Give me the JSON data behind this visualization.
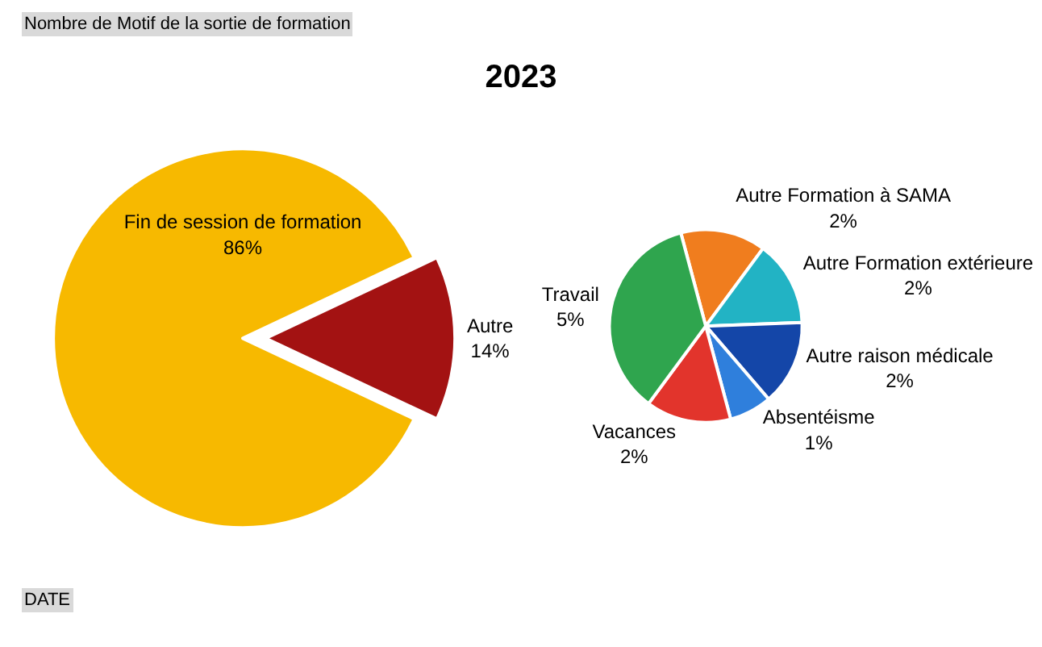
{
  "chart_data": [
    {
      "type": "pie",
      "title": "2023",
      "categories": [
        "Fin de session de formation",
        "Autre"
      ],
      "values": [
        86,
        14
      ],
      "value_labels": [
        "86%",
        "14%"
      ],
      "colors": [
        "#f7b900",
        "#a31212"
      ],
      "annotations": [
        "Nombre de Motif de la sortie de formation",
        "DATE"
      ]
    },
    {
      "type": "pie",
      "categories": [
        "Autre Formation à SAMA",
        "Autre Formation extérieure",
        "Autre raison médicale",
        "Absentéisme",
        "Vacances",
        "Travail"
      ],
      "values": [
        2,
        2,
        2,
        1,
        2,
        5
      ],
      "value_labels": [
        "2%",
        "2%",
        "2%",
        "1%",
        "2%",
        "5%"
      ],
      "colors": [
        "#f07d1e",
        "#22b3c4",
        "#1446a8",
        "#2f7fdc",
        "#e2342c",
        "#2fa54e"
      ]
    }
  ]
}
